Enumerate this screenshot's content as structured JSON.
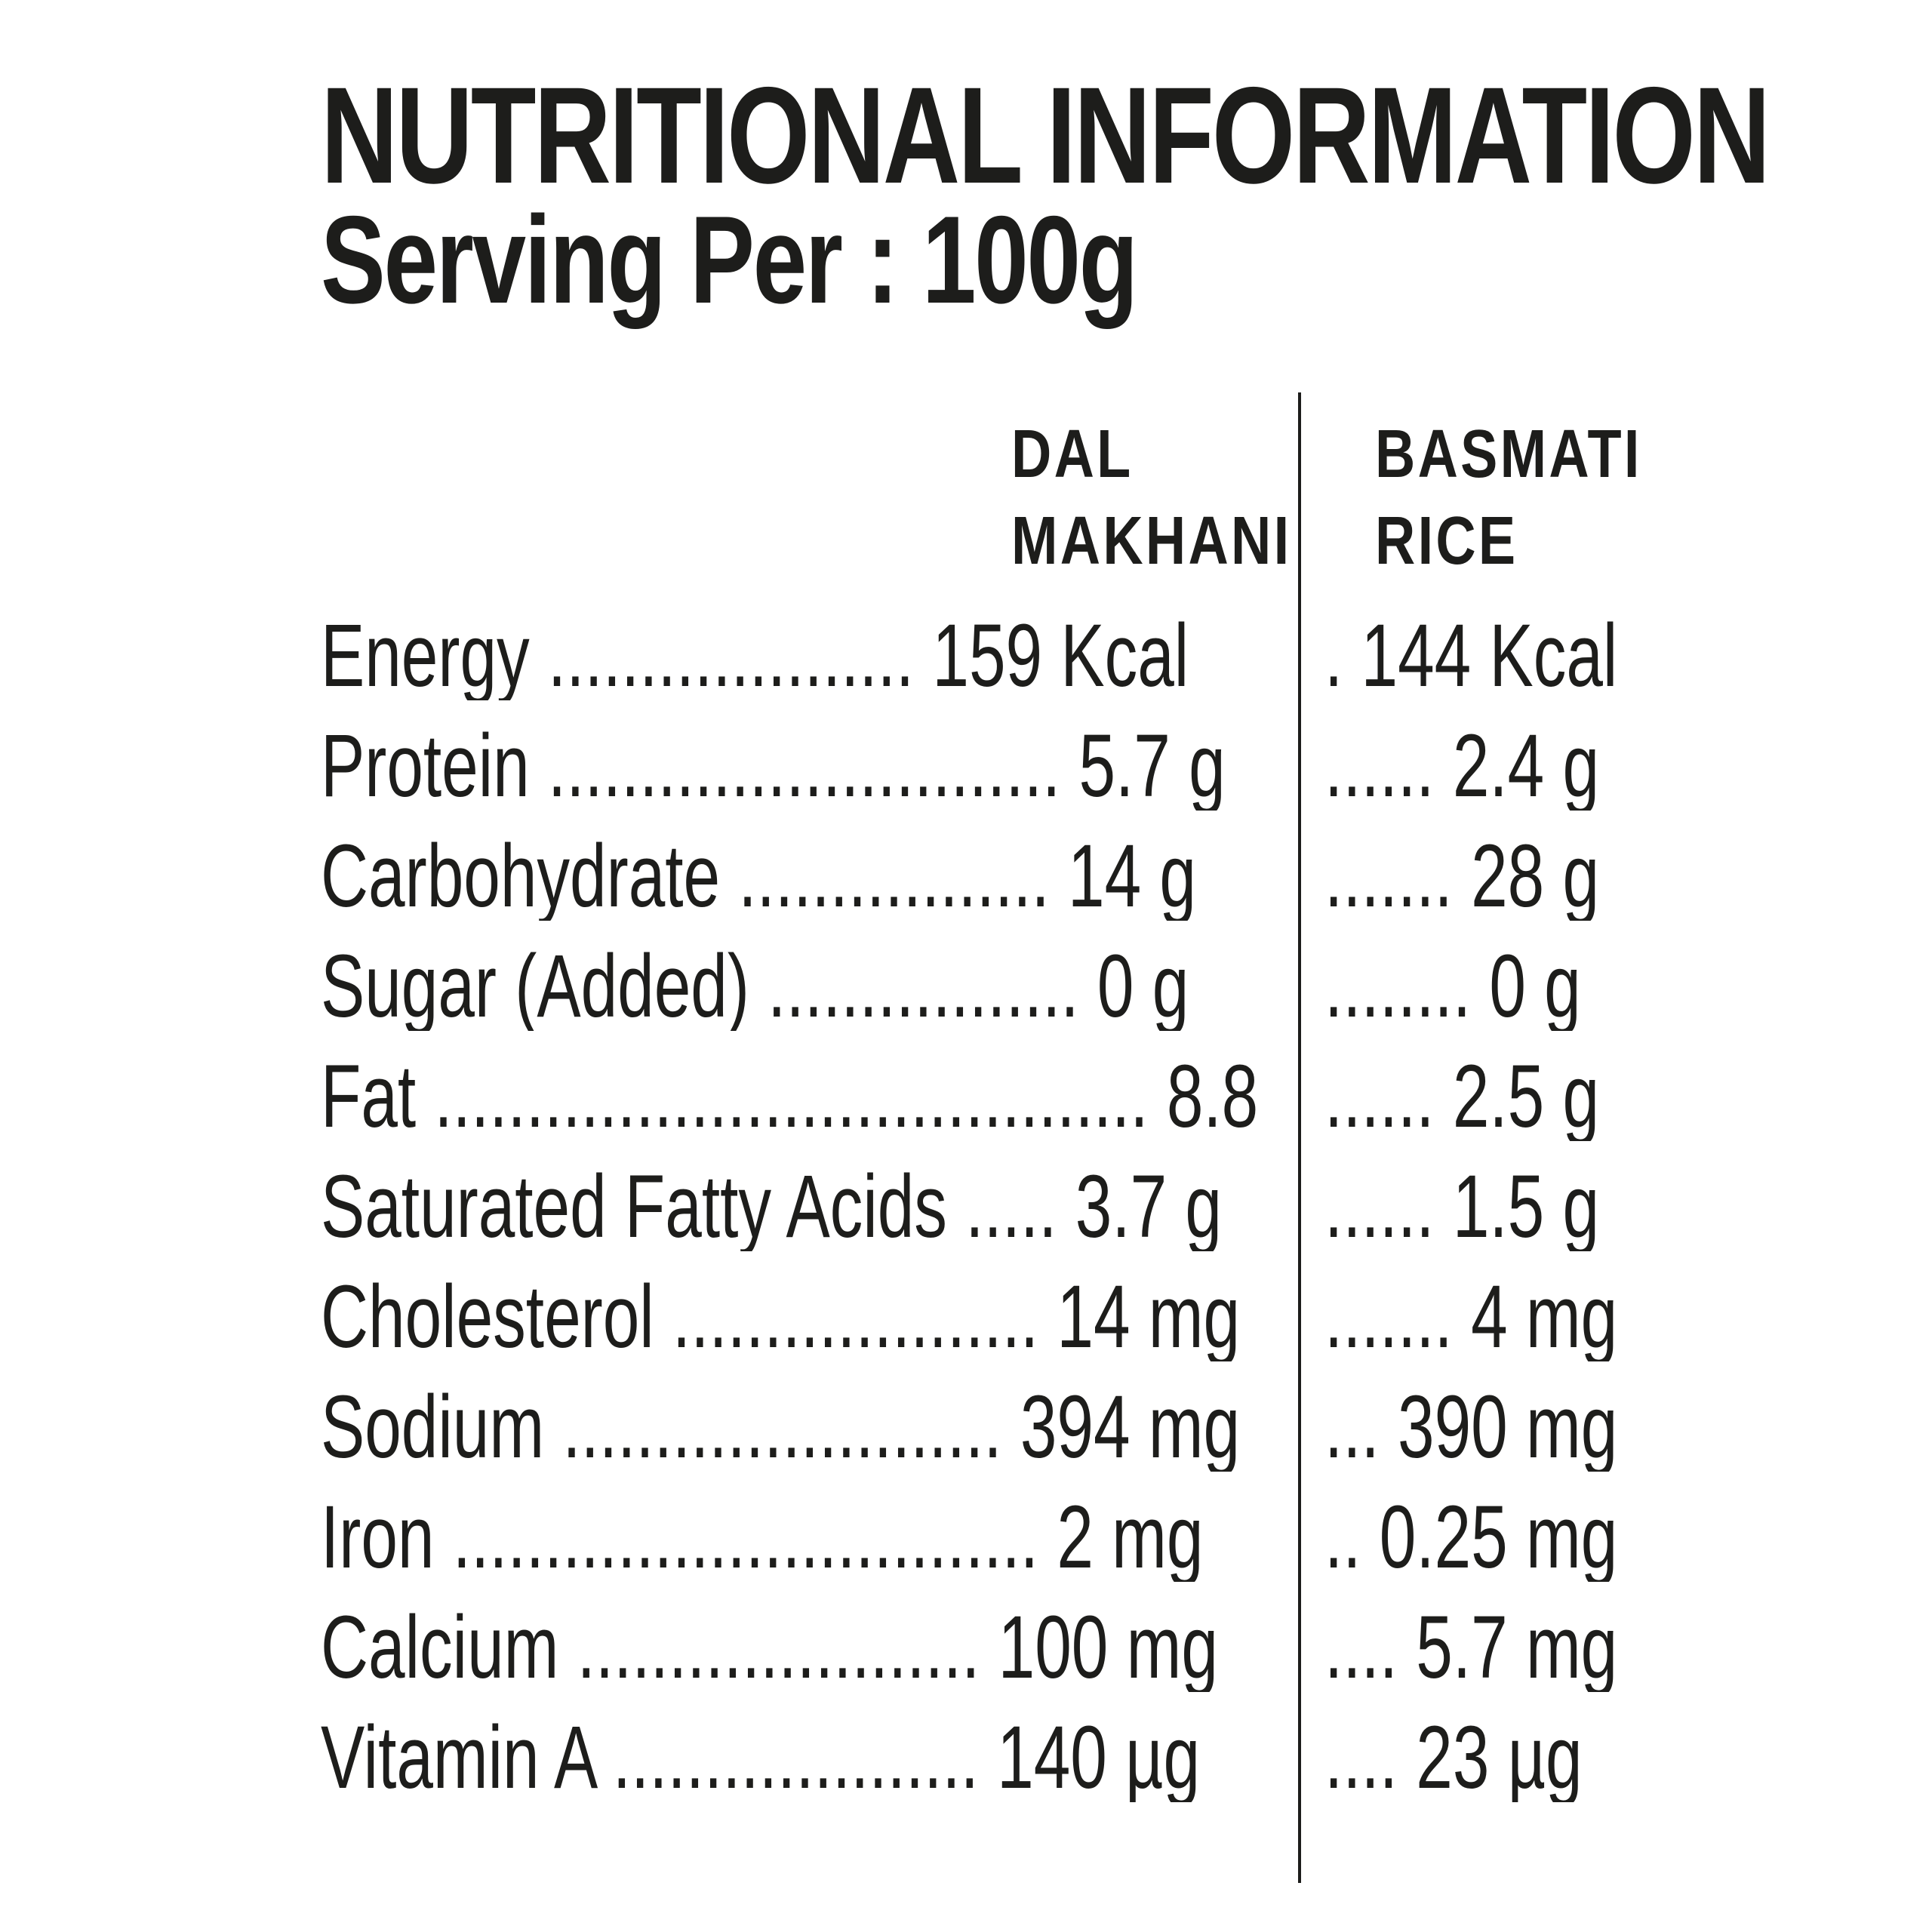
{
  "title": "NUTRITIONAL INFORMATION",
  "subtitle": "Serving Per : 100g",
  "columns": {
    "dal": [
      "DAL",
      "MAKHANI"
    ],
    "rice": [
      "BASMATI",
      "RICE"
    ]
  },
  "rows": [
    {
      "left": "Energy .................... 159  Kcal",
      "right": ". 144 Kcal"
    },
    {
      "left": "Protein ............................ 5.7  g",
      "right": "...... 2.4  g"
    },
    {
      "left": "Carbohydrate ................. 14  g",
      "right": "....... 28  g"
    },
    {
      "left": "Sugar  (Added) ................. 0  g",
      "right": "........ 0  g"
    },
    {
      "left": "Fat ....................................... 8.8 g",
      "right": "...... 2.5  g"
    },
    {
      "left": "Saturated Fatty Acids ..... 3.7 g",
      "right": "...... 1.5  g"
    },
    {
      "left": "Cholesterol .................... 14 mg",
      "right": "....... 4 mg"
    },
    {
      "left": "Sodium ........................ 394 mg",
      "right": "... 390 mg"
    },
    {
      "left": "Iron ................................ 2  mg",
      "right": ".. 0.25 mg"
    },
    {
      "left": "Calcium ...................... 100  mg",
      "right": ".... 5.7 mg"
    },
    {
      "left": "Vitamin A .................... 140  µg",
      "right": "....  23  µg"
    }
  ]
}
